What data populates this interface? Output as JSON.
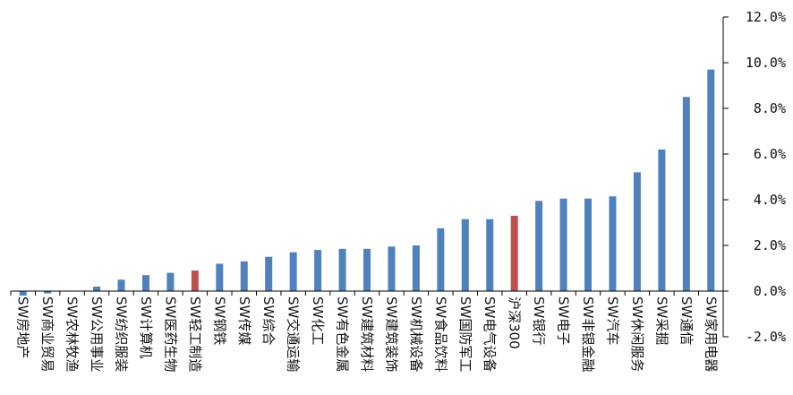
{
  "chart_data": {
    "type": "bar",
    "title": "",
    "xlabel": "",
    "ylabel": "",
    "ylim": [
      -2.0,
      12.0
    ],
    "y_ticks": [
      "-2.0%",
      "0.0%",
      "2.0%",
      "4.0%",
      "6.0%",
      "8.0%",
      "10.0%",
      "12.0%"
    ],
    "y_axis_side": "right",
    "grid": false,
    "legend": "none",
    "colors": {
      "default": "#4f81bd",
      "highlight": "#c0504d",
      "axis": "#000000"
    },
    "categories": [
      "SW房地产",
      "SW商业贸易",
      "SW农林牧渔",
      "SW公用事业",
      "SW纺织服装",
      "SW计算机",
      "SW医药生物",
      "SW轻工制造",
      "SW钢铁",
      "SW传媒",
      "SW综合",
      "SW交通运输",
      "SW化工",
      "SW有色金属",
      "SW建筑材料",
      "SW建筑装饰",
      "SW机械设备",
      "SW食品饮料",
      "SW国防军工",
      "SW电气设备",
      "沪深300",
      "SW银行",
      "SW电子",
      "SW非银金融",
      "SW汽车",
      "SW休闲服务",
      "SW采掘",
      "SW通信",
      "SW家用电器"
    ],
    "values": [
      -0.2,
      -0.1,
      0.0,
      0.2,
      0.5,
      0.7,
      0.8,
      0.9,
      1.2,
      1.3,
      1.5,
      1.7,
      1.8,
      1.85,
      1.85,
      1.95,
      2.0,
      2.75,
      3.15,
      3.15,
      3.3,
      3.95,
      4.05,
      4.05,
      4.15,
      5.2,
      6.2,
      8.5,
      9.7
    ],
    "highlight": [
      false,
      false,
      false,
      false,
      false,
      false,
      false,
      true,
      false,
      false,
      false,
      false,
      false,
      false,
      false,
      false,
      false,
      false,
      false,
      false,
      true,
      false,
      false,
      false,
      false,
      false,
      false,
      false,
      false
    ]
  }
}
